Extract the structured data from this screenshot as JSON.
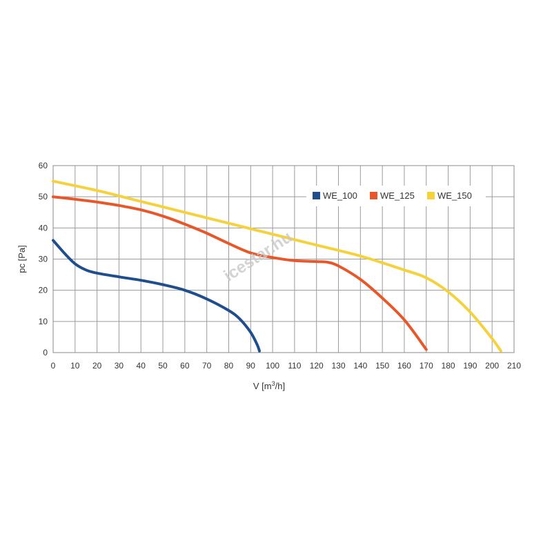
{
  "watermark": "icestar.hu",
  "chart_data": {
    "type": "line",
    "xlabel": "V [m",
    "xlabel_sup": "3",
    "xlabel_suffix": "/h]",
    "ylabel": "pc [Pa]",
    "xlim": [
      0,
      210
    ],
    "ylim": [
      0,
      60
    ],
    "x_ticks": [
      0,
      10,
      20,
      30,
      40,
      50,
      60,
      70,
      80,
      90,
      100,
      110,
      120,
      130,
      140,
      150,
      160,
      170,
      180,
      190,
      200,
      210
    ],
    "y_ticks": [
      0,
      10,
      20,
      30,
      40,
      50,
      60
    ],
    "grid": true,
    "legend_position": "top-right",
    "series": [
      {
        "name": "WE_100",
        "color": "#1f4e8c",
        "points": [
          [
            0,
            36
          ],
          [
            5,
            32
          ],
          [
            10,
            28.5
          ],
          [
            15,
            26.5
          ],
          [
            20,
            25.5
          ],
          [
            30,
            24.3
          ],
          [
            40,
            23.2
          ],
          [
            50,
            21.8
          ],
          [
            60,
            20
          ],
          [
            70,
            17.2
          ],
          [
            80,
            13.5
          ],
          [
            85,
            10.8
          ],
          [
            90,
            6.5
          ],
          [
            93,
            2.5
          ],
          [
            94,
            0.5
          ]
        ]
      },
      {
        "name": "WE_125",
        "color": "#e8572a",
        "points": [
          [
            0,
            50
          ],
          [
            10,
            49.2
          ],
          [
            20,
            48.3
          ],
          [
            30,
            47.2
          ],
          [
            40,
            45.8
          ],
          [
            50,
            43.8
          ],
          [
            60,
            41.2
          ],
          [
            70,
            38.3
          ],
          [
            80,
            35
          ],
          [
            90,
            32
          ],
          [
            100,
            30.5
          ],
          [
            110,
            29.5
          ],
          [
            120,
            29.2
          ],
          [
            125,
            29
          ],
          [
            130,
            27.8
          ],
          [
            140,
            23.5
          ],
          [
            150,
            17.5
          ],
          [
            160,
            10.5
          ],
          [
            170,
            1
          ]
        ]
      },
      {
        "name": "WE_150",
        "color": "#f5d23c",
        "points": [
          [
            0,
            55
          ],
          [
            20,
            52
          ],
          [
            40,
            48.5
          ],
          [
            60,
            45
          ],
          [
            80,
            41.5
          ],
          [
            100,
            38
          ],
          [
            120,
            34.5
          ],
          [
            140,
            31
          ],
          [
            160,
            26.5
          ],
          [
            170,
            24
          ],
          [
            180,
            19.5
          ],
          [
            190,
            13
          ],
          [
            200,
            4.5
          ],
          [
            204,
            0.5
          ]
        ]
      }
    ]
  }
}
